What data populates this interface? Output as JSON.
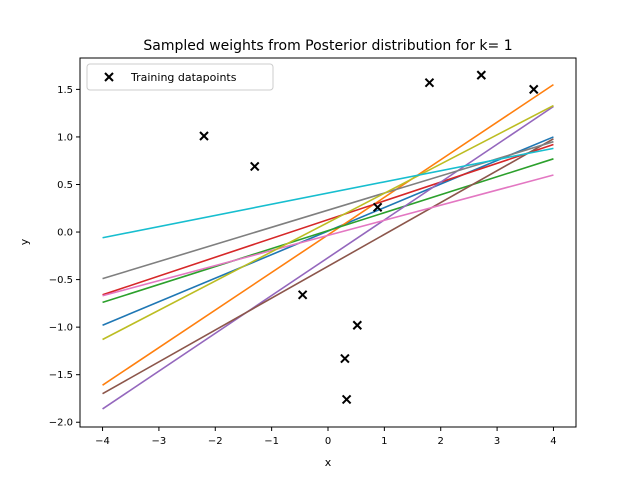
{
  "chart_data": {
    "type": "scatter",
    "title": "Sampled weights from Posterior distribution for k= 1",
    "xlabel": "x",
    "ylabel": "y",
    "xlim": [
      -4.4,
      4.4
    ],
    "ylim": [
      -2.05,
      1.83
    ],
    "x_ticks": [
      -4,
      -3,
      -2,
      -1,
      0,
      1,
      2,
      3,
      4
    ],
    "x_tick_labels": [
      "−4",
      "−3",
      "−2",
      "−1",
      "0",
      "1",
      "2",
      "3",
      "4"
    ],
    "y_ticks": [
      -2.0,
      -1.5,
      -1.0,
      -0.5,
      0.0,
      0.5,
      1.0,
      1.5
    ],
    "y_tick_labels": [
      "−2.0",
      "−1.5",
      "−1.0",
      "−0.5",
      "0.0",
      "0.5",
      "1.0",
      "1.5"
    ],
    "grid": false,
    "legend": {
      "position": "top-left",
      "entries": [
        "Training datapoints"
      ]
    },
    "scatter": {
      "name": "Training datapoints",
      "marker": "x",
      "color": "#000000",
      "points": [
        [
          -2.2,
          1.01
        ],
        [
          -1.3,
          0.69
        ],
        [
          -0.45,
          -0.66
        ],
        [
          0.3,
          -1.33
        ],
        [
          0.33,
          -1.76
        ],
        [
          0.52,
          -0.98
        ],
        [
          0.88,
          0.26
        ],
        [
          1.8,
          1.57
        ],
        [
          2.72,
          1.65
        ],
        [
          3.65,
          1.5
        ]
      ]
    },
    "lines": [
      {
        "color": "#1f77b4",
        "x": [
          -4,
          4
        ],
        "y": [
          -0.98,
          1.0
        ]
      },
      {
        "color": "#ff7f0e",
        "x": [
          -4,
          4
        ],
        "y": [
          -1.61,
          1.55
        ]
      },
      {
        "color": "#2ca02c",
        "x": [
          -4,
          4
        ],
        "y": [
          -0.74,
          0.77
        ]
      },
      {
        "color": "#d62728",
        "x": [
          -4,
          4
        ],
        "y": [
          -0.66,
          0.92
        ]
      },
      {
        "color": "#9467bd",
        "x": [
          -4,
          4
        ],
        "y": [
          -1.86,
          1.32
        ]
      },
      {
        "color": "#8c564b",
        "x": [
          -4,
          4
        ],
        "y": [
          -1.7,
          0.98
        ]
      },
      {
        "color": "#e377c2",
        "x": [
          -4,
          4
        ],
        "y": [
          -0.67,
          0.6
        ]
      },
      {
        "color": "#7f7f7f",
        "x": [
          -4,
          4
        ],
        "y": [
          -0.49,
          0.95
        ]
      },
      {
        "color": "#bcbd22",
        "x": [
          -4,
          4
        ],
        "y": [
          -1.13,
          1.33
        ]
      },
      {
        "color": "#17becf",
        "x": [
          -4,
          4
        ],
        "y": [
          -0.06,
          0.88
        ]
      }
    ]
  }
}
